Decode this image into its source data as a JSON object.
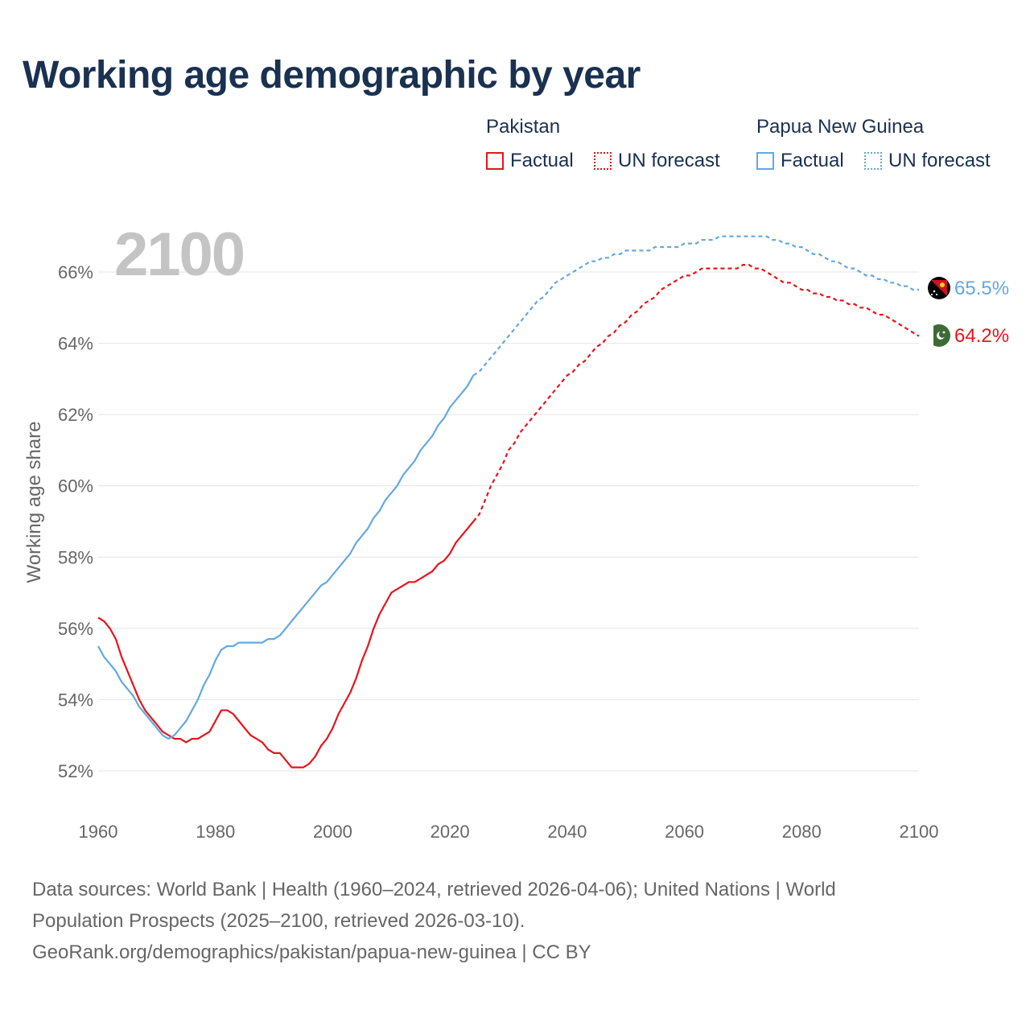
{
  "title": "Working age demographic by year",
  "legend": {
    "groups": [
      {
        "name": "Pakistan",
        "factual_label": "Factual",
        "forecast_label": "UN forecast",
        "color": "#e8141a"
      },
      {
        "name": "Papua New Guinea",
        "factual_label": "Factual",
        "forecast_label": "UN forecast",
        "color": "#64a8e0"
      }
    ]
  },
  "footer": {
    "line1": "Data sources: World Bank | Health (1960–2024, retrieved 2026-04-06); United Nations | World",
    "line2": "Population Prospects (2025–2100, retrieved 2026-03-10).",
    "line3": "GeoRank.org/demographics/pakistan/papua-new-guinea | CC BY"
  },
  "chart_data": {
    "type": "line",
    "title": "Working age demographic by year",
    "year_label": "2100",
    "xlabel": "",
    "ylabel": "Working age share",
    "xlim": [
      1960,
      2100
    ],
    "ylim": [
      51,
      67.2
    ],
    "x_ticks": [
      "1960",
      "1980",
      "2000",
      "2020",
      "2040",
      "2060",
      "2080",
      "2100"
    ],
    "y_ticks": [
      "52%",
      "54%",
      "56%",
      "58%",
      "60%",
      "62%",
      "64%",
      "66%"
    ],
    "grid": true,
    "factual_end_year": 2024,
    "series": [
      {
        "name": "Pakistan",
        "color": "#e8141a",
        "end_label": "64.2%",
        "flag_icon": "pakistan-flag-icon",
        "points": [
          [
            1960,
            56.3
          ],
          [
            1961,
            56.2
          ],
          [
            1962,
            56.0
          ],
          [
            1963,
            55.7
          ],
          [
            1964,
            55.2
          ],
          [
            1965,
            54.8
          ],
          [
            1966,
            54.4
          ],
          [
            1967,
            54.0
          ],
          [
            1968,
            53.7
          ],
          [
            1969,
            53.5
          ],
          [
            1970,
            53.3
          ],
          [
            1971,
            53.1
          ],
          [
            1972,
            53.0
          ],
          [
            1973,
            52.9
          ],
          [
            1974,
            52.9
          ],
          [
            1975,
            52.8
          ],
          [
            1976,
            52.9
          ],
          [
            1977,
            52.9
          ],
          [
            1978,
            53.0
          ],
          [
            1979,
            53.1
          ],
          [
            1980,
            53.4
          ],
          [
            1981,
            53.7
          ],
          [
            1982,
            53.7
          ],
          [
            1983,
            53.6
          ],
          [
            1984,
            53.4
          ],
          [
            1985,
            53.2
          ],
          [
            1986,
            53.0
          ],
          [
            1987,
            52.9
          ],
          [
            1988,
            52.8
          ],
          [
            1989,
            52.6
          ],
          [
            1990,
            52.5
          ],
          [
            1991,
            52.5
          ],
          [
            1992,
            52.3
          ],
          [
            1993,
            52.1
          ],
          [
            1994,
            52.1
          ],
          [
            1995,
            52.1
          ],
          [
            1996,
            52.2
          ],
          [
            1997,
            52.4
          ],
          [
            1998,
            52.7
          ],
          [
            1999,
            52.9
          ],
          [
            2000,
            53.2
          ],
          [
            2001,
            53.6
          ],
          [
            2002,
            53.9
          ],
          [
            2003,
            54.2
          ],
          [
            2004,
            54.6
          ],
          [
            2005,
            55.1
          ],
          [
            2006,
            55.5
          ],
          [
            2007,
            56.0
          ],
          [
            2008,
            56.4
          ],
          [
            2009,
            56.7
          ],
          [
            2010,
            57.0
          ],
          [
            2011,
            57.1
          ],
          [
            2012,
            57.2
          ],
          [
            2013,
            57.3
          ],
          [
            2014,
            57.3
          ],
          [
            2015,
            57.4
          ],
          [
            2016,
            57.5
          ],
          [
            2017,
            57.6
          ],
          [
            2018,
            57.8
          ],
          [
            2019,
            57.9
          ],
          [
            2020,
            58.1
          ],
          [
            2021,
            58.4
          ],
          [
            2022,
            58.6
          ],
          [
            2023,
            58.8
          ],
          [
            2024,
            59.0
          ],
          [
            2025,
            59.2
          ],
          [
            2026,
            59.6
          ],
          [
            2027,
            60.0
          ],
          [
            2028,
            60.3
          ],
          [
            2029,
            60.6
          ],
          [
            2030,
            61.0
          ],
          [
            2031,
            61.2
          ],
          [
            2032,
            61.5
          ],
          [
            2033,
            61.7
          ],
          [
            2034,
            61.9
          ],
          [
            2035,
            62.1
          ],
          [
            2036,
            62.3
          ],
          [
            2037,
            62.5
          ],
          [
            2038,
            62.7
          ],
          [
            2039,
            62.9
          ],
          [
            2040,
            63.1
          ],
          [
            2041,
            63.2
          ],
          [
            2042,
            63.4
          ],
          [
            2043,
            63.5
          ],
          [
            2044,
            63.7
          ],
          [
            2045,
            63.9
          ],
          [
            2046,
            64.0
          ],
          [
            2047,
            64.2
          ],
          [
            2048,
            64.3
          ],
          [
            2049,
            64.5
          ],
          [
            2050,
            64.6
          ],
          [
            2051,
            64.8
          ],
          [
            2052,
            64.9
          ],
          [
            2053,
            65.1
          ],
          [
            2054,
            65.2
          ],
          [
            2055,
            65.3
          ],
          [
            2056,
            65.5
          ],
          [
            2057,
            65.6
          ],
          [
            2058,
            65.7
          ],
          [
            2059,
            65.8
          ],
          [
            2060,
            65.9
          ],
          [
            2061,
            65.9
          ],
          [
            2062,
            66.0
          ],
          [
            2063,
            66.1
          ],
          [
            2064,
            66.1
          ],
          [
            2065,
            66.1
          ],
          [
            2066,
            66.1
          ],
          [
            2067,
            66.1
          ],
          [
            2068,
            66.1
          ],
          [
            2069,
            66.1
          ],
          [
            2070,
            66.2
          ],
          [
            2071,
            66.2
          ],
          [
            2072,
            66.1
          ],
          [
            2073,
            66.1
          ],
          [
            2074,
            66.0
          ],
          [
            2075,
            65.9
          ],
          [
            2076,
            65.8
          ],
          [
            2077,
            65.7
          ],
          [
            2078,
            65.7
          ],
          [
            2079,
            65.6
          ],
          [
            2080,
            65.5
          ],
          [
            2081,
            65.5
          ],
          [
            2082,
            65.4
          ],
          [
            2083,
            65.4
          ],
          [
            2084,
            65.3
          ],
          [
            2085,
            65.3
          ],
          [
            2086,
            65.2
          ],
          [
            2087,
            65.2
          ],
          [
            2088,
            65.1
          ],
          [
            2089,
            65.1
          ],
          [
            2090,
            65.0
          ],
          [
            2091,
            65.0
          ],
          [
            2092,
            64.9
          ],
          [
            2093,
            64.8
          ],
          [
            2094,
            64.8
          ],
          [
            2095,
            64.7
          ],
          [
            2096,
            64.6
          ],
          [
            2097,
            64.5
          ],
          [
            2098,
            64.4
          ],
          [
            2099,
            64.3
          ],
          [
            2100,
            64.2
          ]
        ]
      },
      {
        "name": "Papua New Guinea",
        "color": "#64a8e0",
        "end_label": "65.5%",
        "flag_icon": "papua-new-guinea-flag-icon",
        "points": [
          [
            1960,
            55.5
          ],
          [
            1961,
            55.2
          ],
          [
            1962,
            55.0
          ],
          [
            1963,
            54.8
          ],
          [
            1964,
            54.5
          ],
          [
            1965,
            54.3
          ],
          [
            1966,
            54.1
          ],
          [
            1967,
            53.8
          ],
          [
            1968,
            53.6
          ],
          [
            1969,
            53.4
          ],
          [
            1970,
            53.2
          ],
          [
            1971,
            53.0
          ],
          [
            1972,
            52.9
          ],
          [
            1973,
            53.0
          ],
          [
            1974,
            53.2
          ],
          [
            1975,
            53.4
          ],
          [
            1976,
            53.7
          ],
          [
            1977,
            54.0
          ],
          [
            1978,
            54.4
          ],
          [
            1979,
            54.7
          ],
          [
            1980,
            55.1
          ],
          [
            1981,
            55.4
          ],
          [
            1982,
            55.5
          ],
          [
            1983,
            55.5
          ],
          [
            1984,
            55.6
          ],
          [
            1985,
            55.6
          ],
          [
            1986,
            55.6
          ],
          [
            1987,
            55.6
          ],
          [
            1988,
            55.6
          ],
          [
            1989,
            55.7
          ],
          [
            1990,
            55.7
          ],
          [
            1991,
            55.8
          ],
          [
            1992,
            56.0
          ],
          [
            1993,
            56.2
          ],
          [
            1994,
            56.4
          ],
          [
            1995,
            56.6
          ],
          [
            1996,
            56.8
          ],
          [
            1997,
            57.0
          ],
          [
            1998,
            57.2
          ],
          [
            1999,
            57.3
          ],
          [
            2000,
            57.5
          ],
          [
            2001,
            57.7
          ],
          [
            2002,
            57.9
          ],
          [
            2003,
            58.1
          ],
          [
            2004,
            58.4
          ],
          [
            2005,
            58.6
          ],
          [
            2006,
            58.8
          ],
          [
            2007,
            59.1
          ],
          [
            2008,
            59.3
          ],
          [
            2009,
            59.6
          ],
          [
            2010,
            59.8
          ],
          [
            2011,
            60.0
          ],
          [
            2012,
            60.3
          ],
          [
            2013,
            60.5
          ],
          [
            2014,
            60.7
          ],
          [
            2015,
            61.0
          ],
          [
            2016,
            61.2
          ],
          [
            2017,
            61.4
          ],
          [
            2018,
            61.7
          ],
          [
            2019,
            61.9
          ],
          [
            2020,
            62.2
          ],
          [
            2021,
            62.4
          ],
          [
            2022,
            62.6
          ],
          [
            2023,
            62.8
          ],
          [
            2024,
            63.1
          ],
          [
            2025,
            63.2
          ],
          [
            2026,
            63.4
          ],
          [
            2027,
            63.6
          ],
          [
            2028,
            63.8
          ],
          [
            2029,
            64.0
          ],
          [
            2030,
            64.2
          ],
          [
            2031,
            64.4
          ],
          [
            2032,
            64.6
          ],
          [
            2033,
            64.8
          ],
          [
            2034,
            65.0
          ],
          [
            2035,
            65.2
          ],
          [
            2036,
            65.3
          ],
          [
            2037,
            65.5
          ],
          [
            2038,
            65.7
          ],
          [
            2039,
            65.8
          ],
          [
            2040,
            65.9
          ],
          [
            2041,
            66.0
          ],
          [
            2042,
            66.1
          ],
          [
            2043,
            66.2
          ],
          [
            2044,
            66.3
          ],
          [
            2045,
            66.3
          ],
          [
            2046,
            66.4
          ],
          [
            2047,
            66.4
          ],
          [
            2048,
            66.5
          ],
          [
            2049,
            66.5
          ],
          [
            2050,
            66.6
          ],
          [
            2051,
            66.6
          ],
          [
            2052,
            66.6
          ],
          [
            2053,
            66.6
          ],
          [
            2054,
            66.6
          ],
          [
            2055,
            66.7
          ],
          [
            2056,
            66.7
          ],
          [
            2057,
            66.7
          ],
          [
            2058,
            66.7
          ],
          [
            2059,
            66.7
          ],
          [
            2060,
            66.8
          ],
          [
            2061,
            66.8
          ],
          [
            2062,
            66.8
          ],
          [
            2063,
            66.9
          ],
          [
            2064,
            66.9
          ],
          [
            2065,
            66.9
          ],
          [
            2066,
            67.0
          ],
          [
            2067,
            67.0
          ],
          [
            2068,
            67.0
          ],
          [
            2069,
            67.0
          ],
          [
            2070,
            67.0
          ],
          [
            2071,
            67.0
          ],
          [
            2072,
            67.0
          ],
          [
            2073,
            67.0
          ],
          [
            2074,
            67.0
          ],
          [
            2075,
            66.9
          ],
          [
            2076,
            66.9
          ],
          [
            2077,
            66.8
          ],
          [
            2078,
            66.8
          ],
          [
            2079,
            66.7
          ],
          [
            2080,
            66.7
          ],
          [
            2081,
            66.6
          ],
          [
            2082,
            66.5
          ],
          [
            2083,
            66.5
          ],
          [
            2084,
            66.4
          ],
          [
            2085,
            66.3
          ],
          [
            2086,
            66.3
          ],
          [
            2087,
            66.2
          ],
          [
            2088,
            66.1
          ],
          [
            2089,
            66.1
          ],
          [
            2090,
            66.0
          ],
          [
            2091,
            65.9
          ],
          [
            2092,
            65.9
          ],
          [
            2093,
            65.8
          ],
          [
            2094,
            65.8
          ],
          [
            2095,
            65.7
          ],
          [
            2096,
            65.7
          ],
          [
            2097,
            65.6
          ],
          [
            2098,
            65.6
          ],
          [
            2099,
            65.5
          ],
          [
            2100,
            65.5
          ]
        ]
      }
    ]
  }
}
